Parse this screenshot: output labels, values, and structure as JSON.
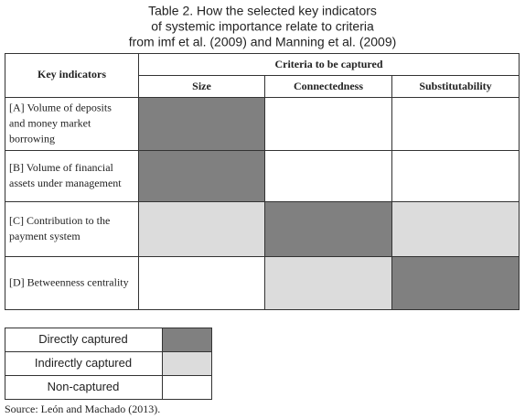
{
  "title": [
    "Table 2. How the selected key indicators",
    "of systemic importance relate to criteria",
    "from imf et al. (2009) and Manning et al. (2009)"
  ],
  "table": {
    "corner_header": "Key indicators",
    "group_header": "Criteria to be captured",
    "columns": [
      "Size",
      "Connectedness",
      "Substitutability"
    ],
    "rows": [
      {
        "label": [
          "[A] Volume of deposits",
          "and money market",
          "borrowing"
        ],
        "cells": [
          "#808080",
          "#ffffff",
          "#ffffff"
        ]
      },
      {
        "label": [
          "[B] Volume of financial",
          "assets under management"
        ],
        "cells": [
          "#808080",
          "#ffffff",
          "#ffffff"
        ]
      },
      {
        "label": [
          "[C] Contribution to the",
          "payment system"
        ],
        "cells": [
          "#dcdcdc",
          "#808080",
          "#dcdcdc"
        ]
      },
      {
        "label": [
          "[D] Betweenness centrality"
        ],
        "cells": [
          "#ffffff",
          "#dcdcdc",
          "#808080"
        ]
      }
    ]
  },
  "legend": [
    {
      "name": "Directly captured",
      "color": "#808080"
    },
    {
      "name": "Indirectly captured",
      "color": "#dcdcdc"
    },
    {
      "name": "Non-captured",
      "color": "#ffffff"
    }
  ],
  "source": "Source: León and Machado (2013)."
}
